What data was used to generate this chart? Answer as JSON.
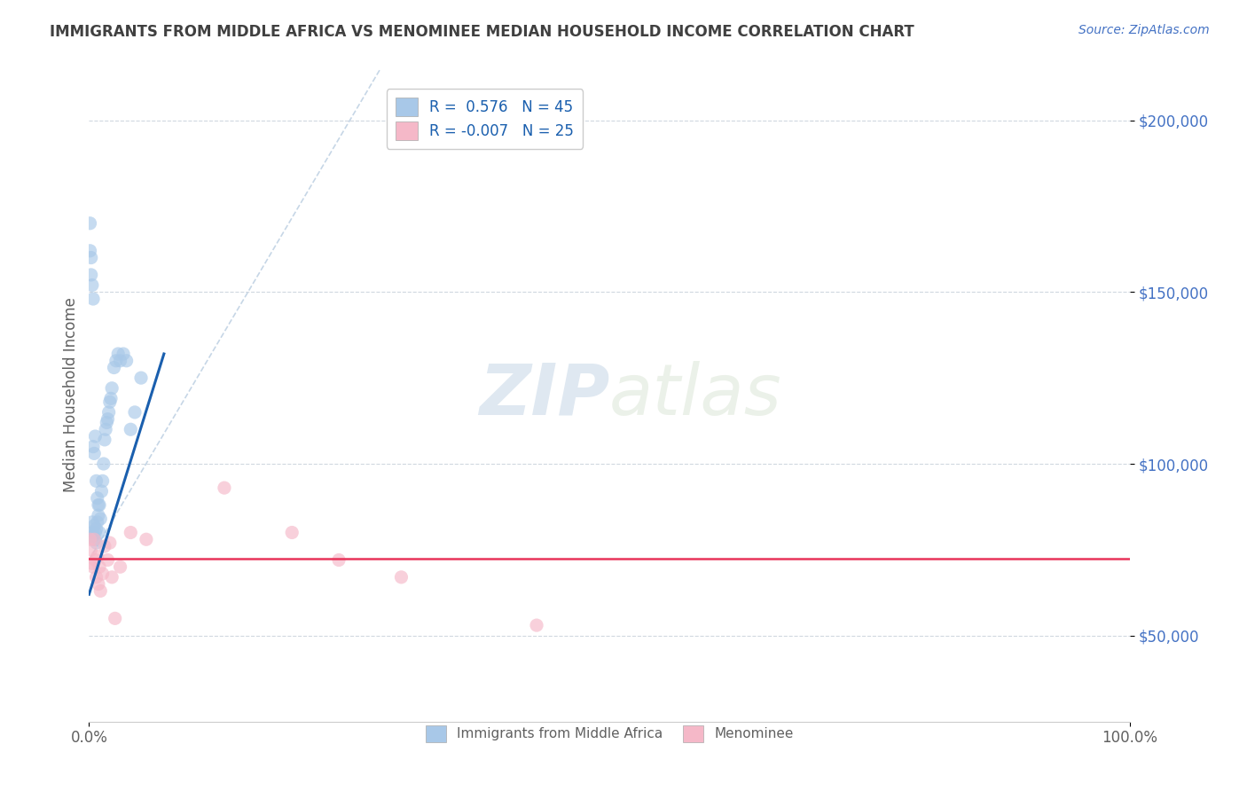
{
  "title": "IMMIGRANTS FROM MIDDLE AFRICA VS MENOMINEE MEDIAN HOUSEHOLD INCOME CORRELATION CHART",
  "source": "Source: ZipAtlas.com",
  "ylabel": "Median Household Income",
  "watermark_zip": "ZIP",
  "watermark_atlas": "atlas",
  "xlim": [
    0,
    1.0
  ],
  "ylim": [
    25000,
    215000
  ],
  "xtick_positions": [
    0.0,
    1.0
  ],
  "xtick_labels": [
    "0.0%",
    "100.0%"
  ],
  "ytick_values": [
    50000,
    100000,
    150000,
    200000
  ],
  "ytick_labels": [
    "$50,000",
    "$100,000",
    "$150,000",
    "$200,000"
  ],
  "background_color": "#ffffff",
  "grid_color": "#d0d8e0",
  "blue_R": "0.576",
  "blue_N": "45",
  "pink_R": "-0.007",
  "pink_N": "25",
  "blue_scatter_x": [
    0.001,
    0.001,
    0.002,
    0.003,
    0.003,
    0.004,
    0.005,
    0.005,
    0.006,
    0.007,
    0.007,
    0.008,
    0.009,
    0.01,
    0.01,
    0.011,
    0.012,
    0.013,
    0.014,
    0.015,
    0.016,
    0.017,
    0.018,
    0.019,
    0.02,
    0.021,
    0.022,
    0.024,
    0.026,
    0.028,
    0.03,
    0.033,
    0.036,
    0.04,
    0.044,
    0.05,
    0.002,
    0.003,
    0.004,
    0.004,
    0.005,
    0.006,
    0.007,
    0.008,
    0.009
  ],
  "blue_scatter_y": [
    170000,
    162000,
    155000,
    80000,
    83000,
    79000,
    78000,
    82000,
    80000,
    77000,
    81000,
    83000,
    85000,
    88000,
    80000,
    84000,
    92000,
    95000,
    100000,
    107000,
    110000,
    112000,
    113000,
    115000,
    118000,
    119000,
    122000,
    128000,
    130000,
    132000,
    130000,
    132000,
    130000,
    110000,
    115000,
    125000,
    160000,
    152000,
    148000,
    105000,
    103000,
    108000,
    95000,
    90000,
    88000
  ],
  "pink_scatter_x": [
    0.001,
    0.002,
    0.003,
    0.004,
    0.005,
    0.006,
    0.007,
    0.008,
    0.009,
    0.01,
    0.011,
    0.013,
    0.015,
    0.018,
    0.02,
    0.022,
    0.025,
    0.03,
    0.04,
    0.055,
    0.13,
    0.195,
    0.24,
    0.3,
    0.43
  ],
  "pink_scatter_y": [
    78000,
    75000,
    71000,
    70000,
    78000,
    72000,
    67000,
    73000,
    65000,
    70000,
    63000,
    68000,
    76000,
    72000,
    77000,
    67000,
    55000,
    70000,
    80000,
    78000,
    93000,
    80000,
    72000,
    67000,
    53000
  ],
  "blue_line_x": [
    0.0,
    0.072
  ],
  "blue_line_y": [
    62000,
    132000
  ],
  "pink_line_y": 72500,
  "diag_line_x": [
    0.0,
    0.28
  ],
  "diag_line_y": [
    72000,
    215000
  ],
  "blue_color": "#a8c8e8",
  "pink_color": "#f5b8c8",
  "blue_line_color": "#1a5fae",
  "pink_line_color": "#e8345a",
  "diag_line_color": "#b8cce0",
  "dot_size": 120,
  "legend_blue_label": "Immigrants from Middle Africa",
  "legend_pink_label": "Menominee",
  "title_color": "#404040",
  "source_color": "#4472c4",
  "ylabel_color": "#606060",
  "tick_color_y": "#4472c4",
  "tick_color_x": "#606060"
}
